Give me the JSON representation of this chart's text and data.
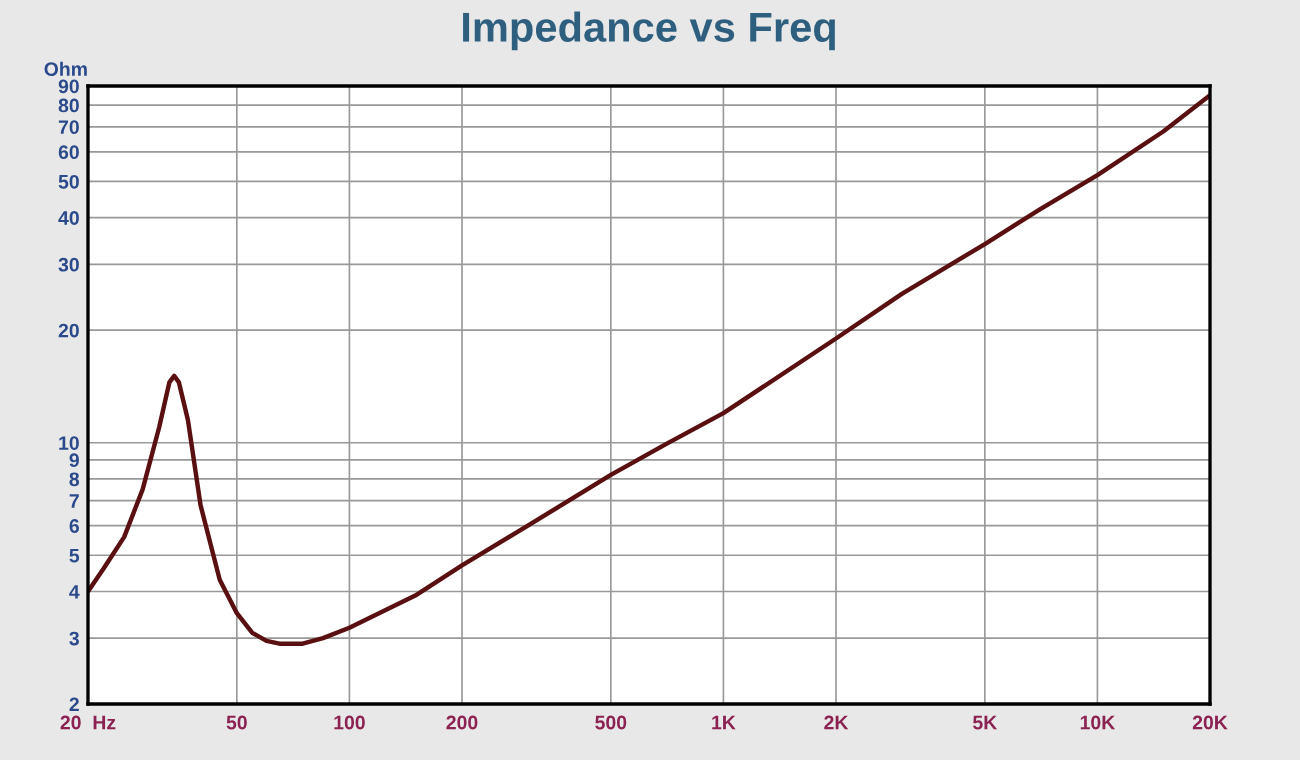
{
  "chart_data": {
    "type": "line",
    "title": "Impedance vs Freq",
    "ylabel": "Ohm",
    "log": "xy",
    "grid": true,
    "marker": "none",
    "line_style": "solid",
    "x": [
      20,
      22,
      25,
      28,
      31,
      33,
      34,
      35,
      37,
      40,
      45,
      50,
      55,
      60,
      65,
      75,
      85,
      100,
      150,
      200,
      300,
      500,
      700,
      1000,
      2000,
      3000,
      5000,
      7000,
      10000,
      15000,
      20000
    ],
    "series": [
      {
        "color": "#5a1010",
        "values": [
          4.0,
          4.6,
          5.6,
          7.5,
          11.0,
          14.5,
          15.1,
          14.5,
          11.5,
          6.8,
          4.3,
          3.5,
          3.1,
          2.95,
          2.9,
          2.9,
          3.0,
          3.2,
          3.9,
          4.7,
          6.0,
          8.2,
          9.9,
          12.0,
          19.0,
          25.0,
          34.0,
          42.0,
          52.0,
          68.0,
          85.0
        ]
      }
    ],
    "xlim": [
      20,
      20000
    ],
    "ylim": [
      2,
      90
    ],
    "xticks": [
      {
        "value": 20,
        "label": "20  Hz"
      },
      50,
      100,
      200,
      500,
      {
        "value": 1000,
        "label": "1K"
      },
      {
        "value": 2000,
        "label": "2K"
      },
      {
        "value": 5000,
        "label": "5K"
      },
      {
        "value": 10000,
        "label": "10K"
      },
      {
        "value": 20000,
        "label": "20K"
      }
    ],
    "yticks": [
      2,
      3,
      4,
      5,
      6,
      7,
      8,
      9,
      10,
      20,
      30,
      40,
      50,
      60,
      70,
      80,
      90
    ]
  }
}
